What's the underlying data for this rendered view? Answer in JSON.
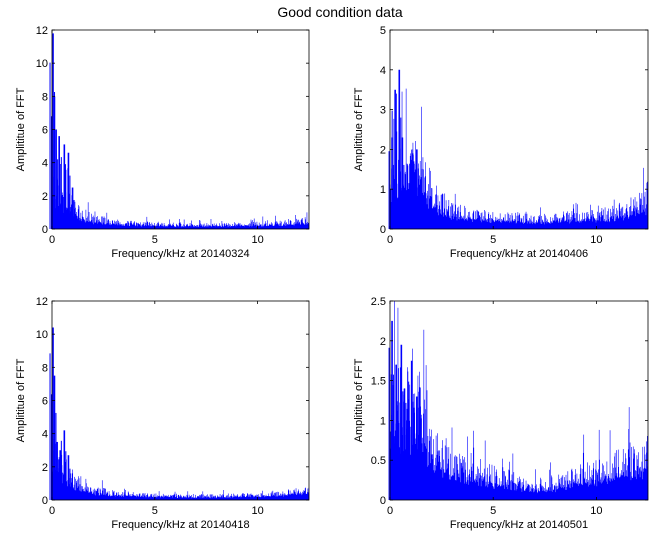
{
  "figure": {
    "title": "Good condition data"
  },
  "colors": {
    "series": "#0000ff",
    "axes": "#000000",
    "background": "#ffffff"
  },
  "chart_data": [
    {
      "type": "bar",
      "title": "",
      "xlabel": "Frequency/kHz at 20140324",
      "ylabel": "Amplititue of FFT",
      "xlim": [
        0,
        12.5
      ],
      "ylim": [
        0,
        12
      ],
      "xticks": [
        0,
        5,
        10
      ],
      "yticks": [
        0,
        2,
        4,
        6,
        8,
        10,
        12
      ],
      "grid": false,
      "legend": "none",
      "peaks": [
        {
          "x": 0.05,
          "y": 11.8
        },
        {
          "x": 0.12,
          "y": 8.0
        },
        {
          "x": 0.2,
          "y": 6.0
        },
        {
          "x": 0.35,
          "y": 5.6
        },
        {
          "x": 0.6,
          "y": 5.1
        },
        {
          "x": 0.8,
          "y": 4.6
        },
        {
          "x": 1.0,
          "y": 2.5
        }
      ],
      "envelope": [
        {
          "x": 0,
          "y": 3.0
        },
        {
          "x": 0.5,
          "y": 1.9
        },
        {
          "x": 1.0,
          "y": 1.3
        },
        {
          "x": 1.5,
          "y": 0.9
        },
        {
          "x": 2,
          "y": 0.6
        },
        {
          "x": 3,
          "y": 0.4
        },
        {
          "x": 4,
          "y": 0.32
        },
        {
          "x": 5,
          "y": 0.3
        },
        {
          "x": 6,
          "y": 0.25
        },
        {
          "x": 7,
          "y": 0.22
        },
        {
          "x": 8,
          "y": 0.25
        },
        {
          "x": 9,
          "y": 0.28
        },
        {
          "x": 10,
          "y": 0.3
        },
        {
          "x": 11,
          "y": 0.35
        },
        {
          "x": 12,
          "y": 0.45
        },
        {
          "x": 12.5,
          "y": 0.55
        }
      ]
    },
    {
      "type": "bar",
      "title": "",
      "xlabel": "Frequency/kHz at 20140406",
      "ylabel": "Amplititue of FFT",
      "xlim": [
        0,
        12.5
      ],
      "ylim": [
        0,
        5
      ],
      "xticks": [
        0,
        5,
        10
      ],
      "yticks": [
        0,
        1,
        2,
        3,
        4,
        5
      ],
      "grid": false,
      "legend": "none",
      "peaks": [
        {
          "x": 0.1,
          "y": 2.3
        },
        {
          "x": 0.25,
          "y": 3.5
        },
        {
          "x": 0.45,
          "y": 4.0
        },
        {
          "x": 0.6,
          "y": 2.3
        },
        {
          "x": 1.1,
          "y": 1.9
        },
        {
          "x": 1.3,
          "y": 2.0
        }
      ],
      "envelope": [
        {
          "x": 0,
          "y": 1.4
        },
        {
          "x": 0.5,
          "y": 1.5
        },
        {
          "x": 1.0,
          "y": 1.7
        },
        {
          "x": 1.5,
          "y": 1.4
        },
        {
          "x": 2,
          "y": 0.9
        },
        {
          "x": 2.5,
          "y": 0.6
        },
        {
          "x": 3,
          "y": 0.45
        },
        {
          "x": 4,
          "y": 0.35
        },
        {
          "x": 5,
          "y": 0.3
        },
        {
          "x": 6,
          "y": 0.3
        },
        {
          "x": 7,
          "y": 0.22
        },
        {
          "x": 8,
          "y": 0.28
        },
        {
          "x": 9,
          "y": 0.3
        },
        {
          "x": 10,
          "y": 0.33
        },
        {
          "x": 11,
          "y": 0.4
        },
        {
          "x": 12,
          "y": 0.6
        },
        {
          "x": 12.5,
          "y": 0.8
        }
      ]
    },
    {
      "type": "bar",
      "title": "",
      "xlabel": "Frequency/kHz at 20140418",
      "ylabel": "Amplititue of FFT",
      "xlim": [
        0,
        12.5
      ],
      "ylim": [
        0,
        12
      ],
      "xticks": [
        0,
        5,
        10
      ],
      "yticks": [
        0,
        2,
        4,
        6,
        8,
        10,
        12
      ],
      "grid": false,
      "legend": "none",
      "peaks": [
        {
          "x": 0.05,
          "y": 10.4
        },
        {
          "x": 0.12,
          "y": 7.5
        },
        {
          "x": 0.25,
          "y": 3.5
        },
        {
          "x": 0.4,
          "y": 3.0
        },
        {
          "x": 0.6,
          "y": 4.2
        },
        {
          "x": 0.8,
          "y": 2.7
        }
      ],
      "envelope": [
        {
          "x": 0,
          "y": 2.5
        },
        {
          "x": 0.5,
          "y": 1.9
        },
        {
          "x": 1.0,
          "y": 1.4
        },
        {
          "x": 1.5,
          "y": 0.9
        },
        {
          "x": 2,
          "y": 0.6
        },
        {
          "x": 3,
          "y": 0.4
        },
        {
          "x": 4,
          "y": 0.32
        },
        {
          "x": 5,
          "y": 0.3
        },
        {
          "x": 6,
          "y": 0.27
        },
        {
          "x": 7,
          "y": 0.22
        },
        {
          "x": 8,
          "y": 0.24
        },
        {
          "x": 9,
          "y": 0.27
        },
        {
          "x": 10,
          "y": 0.3
        },
        {
          "x": 11,
          "y": 0.38
        },
        {
          "x": 12,
          "y": 0.55
        },
        {
          "x": 12.5,
          "y": 0.65
        }
      ]
    },
    {
      "type": "bar",
      "title": "",
      "xlabel": "Frequency/kHz at 20140501",
      "ylabel": "Amplititue of FFT",
      "xlim": [
        0,
        12.5
      ],
      "ylim": [
        0,
        2.5
      ],
      "xticks": [
        0,
        5,
        10
      ],
      "yticks": [
        0,
        0.5,
        1,
        1.5,
        2,
        2.5
      ],
      "grid": false,
      "legend": "none",
      "peaks": [
        {
          "x": 0.1,
          "y": 2.25
        },
        {
          "x": 0.3,
          "y": 1.7
        },
        {
          "x": 0.55,
          "y": 1.95
        },
        {
          "x": 0.7,
          "y": 1.4
        },
        {
          "x": 1.05,
          "y": 1.75
        },
        {
          "x": 1.3,
          "y": 1.3
        }
      ],
      "envelope": [
        {
          "x": 0,
          "y": 1.1
        },
        {
          "x": 0.5,
          "y": 1.2
        },
        {
          "x": 1.0,
          "y": 1.25
        },
        {
          "x": 1.5,
          "y": 1.1
        },
        {
          "x": 2,
          "y": 0.65
        },
        {
          "x": 2.5,
          "y": 0.52
        },
        {
          "x": 3,
          "y": 0.45
        },
        {
          "x": 4,
          "y": 0.38
        },
        {
          "x": 5,
          "y": 0.3
        },
        {
          "x": 6,
          "y": 0.24
        },
        {
          "x": 7,
          "y": 0.16
        },
        {
          "x": 8,
          "y": 0.2
        },
        {
          "x": 9,
          "y": 0.3
        },
        {
          "x": 10,
          "y": 0.38
        },
        {
          "x": 11,
          "y": 0.42
        },
        {
          "x": 12,
          "y": 0.5
        },
        {
          "x": 12.5,
          "y": 0.58
        }
      ]
    }
  ]
}
